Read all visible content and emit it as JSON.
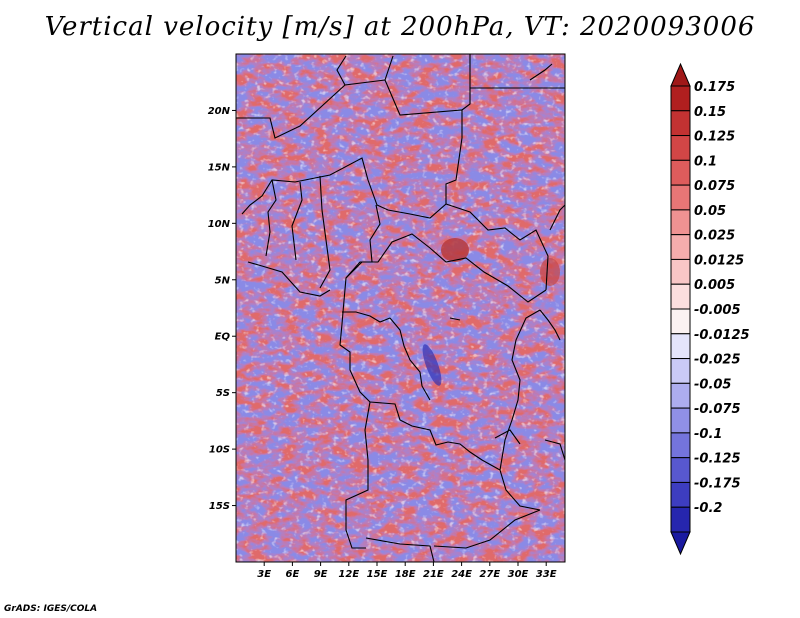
{
  "title": "Vertical velocity [m/s] at 200hPa, VT: 2020093006",
  "credit": "GrADS: IGES/COLA",
  "map": {
    "lon_range": [
      0,
      35
    ],
    "lat_range": [
      -20,
      25
    ],
    "lat_ticks": [
      {
        "lat": 20,
        "label": "20N"
      },
      {
        "lat": 15,
        "label": "15N"
      },
      {
        "lat": 10,
        "label": "10N"
      },
      {
        "lat": 5,
        "label": "5N"
      },
      {
        "lat": 0,
        "label": "EQ"
      },
      {
        "lat": -5,
        "label": "5S"
      },
      {
        "lat": -10,
        "label": "10S"
      },
      {
        "lat": -15,
        "label": "15S"
      }
    ],
    "lon_ticks": [
      {
        "lon": 3,
        "label": "3E"
      },
      {
        "lon": 6,
        "label": "6E"
      },
      {
        "lon": 9,
        "label": "9E"
      },
      {
        "lon": 12,
        "label": "12E"
      },
      {
        "lon": 15,
        "label": "15E"
      },
      {
        "lon": 18,
        "label": "18E"
      },
      {
        "lon": 21,
        "label": "21E"
      },
      {
        "lon": 24,
        "label": "24E"
      },
      {
        "lon": 27,
        "label": "27E"
      },
      {
        "lon": 30,
        "label": "30E"
      },
      {
        "lon": 33,
        "label": "33E"
      }
    ]
  },
  "colorbar": {
    "levels": [
      {
        "label": "0.175",
        "color": "#b01f1f"
      },
      {
        "label": "0.15",
        "color": "#c23232"
      },
      {
        "label": "0.125",
        "color": "#d24646"
      },
      {
        "label": "0.1",
        "color": "#de5c5c"
      },
      {
        "label": "0.075",
        "color": "#e87676"
      },
      {
        "label": "0.05",
        "color": "#ef9292"
      },
      {
        "label": "0.025",
        "color": "#f5adad"
      },
      {
        "label": "0.0125",
        "color": "#f9c6c6"
      },
      {
        "label": "0.005",
        "color": "#fcdede"
      },
      {
        "label": "-0.005",
        "color": "#fbf2f2"
      },
      {
        "label": "-0.0125",
        "color": "#e4e4fb"
      },
      {
        "label": "-0.025",
        "color": "#cacaf6"
      },
      {
        "label": "-0.05",
        "color": "#adadef"
      },
      {
        "label": "-0.075",
        "color": "#9090e6"
      },
      {
        "label": "-0.1",
        "color": "#7474dc"
      },
      {
        "label": "-0.125",
        "color": "#5858cf"
      },
      {
        "label": "-0.175",
        "color": "#3d3dc0"
      },
      {
        "label": "-0.2",
        "color": "#2626ae"
      }
    ],
    "top_arrow_color": "#a01818",
    "bottom_arrow_color": "#1a1aa0"
  }
}
